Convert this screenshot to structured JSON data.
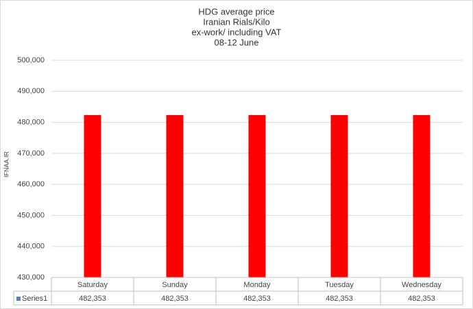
{
  "chart_data": {
    "type": "bar",
    "title": [
      "HDG average  price",
      "Iranian Rials/Kilo",
      "ex-work/ including VAT",
      "08-12 June"
    ],
    "y_label": "IFNAA.IR",
    "categories": [
      "Saturday",
      "Sunday",
      "Monday",
      "Tuesday",
      "Wednesday"
    ],
    "series": [
      {
        "name": "Series1",
        "color": "#ff0000",
        "values": [
          482353,
          482353,
          482353,
          482353,
          482353
        ],
        "value_labels": [
          "482,353",
          "482,353",
          "482,353",
          "482,353",
          "482,353"
        ]
      }
    ],
    "ylim": [
      430000,
      500000
    ],
    "yticks": [
      {
        "value": 430000,
        "label": "430,000"
      },
      {
        "value": 440000,
        "label": "440,000"
      },
      {
        "value": 450000,
        "label": "450,000"
      },
      {
        "value": 460000,
        "label": "460,000"
      },
      {
        "value": 470000,
        "label": "470,000"
      },
      {
        "value": 480000,
        "label": "480,000"
      },
      {
        "value": 490000,
        "label": "490,000"
      },
      {
        "value": 500000,
        "label": "500,000"
      }
    ],
    "grid": true,
    "data_table": true
  }
}
